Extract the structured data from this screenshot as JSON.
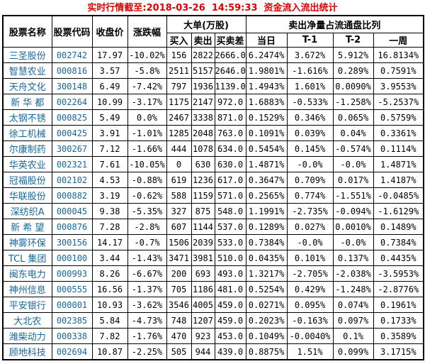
{
  "title": "实时行情截至:2018-03-26  14:59:33  资金流入流出统计",
  "colors": {
    "title_red": "#e00000",
    "stock_link_blue": "#16679c",
    "text": "#000000",
    "border": "#000000",
    "background": "#ffffff"
  },
  "table": {
    "headers": {
      "stock_name": "股票名称",
      "stock_code": "股票代码",
      "close_price": "收盘价",
      "change_pct": "涨跌幅",
      "large_orders_group": "大单(万股)",
      "buy": "买入",
      "sell": "卖出",
      "diff": "买卖差",
      "net_sell_ratio_group": "卖出净量占流通盘比列",
      "day": "当日",
      "t1": "T-1",
      "t2": "T-2",
      "week": "一周"
    },
    "rows": [
      {
        "name": "三圣股份",
        "code": "002742",
        "close": "17.97",
        "change": "-10.02%",
        "buy": "156",
        "sell": "2822",
        "diff": "2666.0",
        "day": "6.2474%",
        "t1": "3.672%",
        "t2": "5.912%",
        "week": "16.8134%"
      },
      {
        "name": "智慧农业",
        "code": "000816",
        "close": "3.57",
        "change": "-5.8%",
        "buy": "2511",
        "sell": "5157",
        "diff": "2646.0",
        "day": "1.9801%",
        "t1": "-1.616%",
        "t2": "0.289%",
        "week": "0.7591%"
      },
      {
        "name": "天舟文化",
        "code": "300148",
        "close": "6.49",
        "change": "-7.42%",
        "buy": "797",
        "sell": "1936",
        "diff": "1139.0",
        "day": "1.4943%",
        "t1": "1.601%",
        "t2": "0.0090%",
        "week": "3.9553%"
      },
      {
        "name": "新 华 都",
        "code": "002264",
        "close": "10.99",
        "change": "-3.17%",
        "buy": "1175",
        "sell": "2147",
        "diff": "972.0",
        "day": "1.6883%",
        "t1": "-0.533%",
        "t2": "-1.258%",
        "week": "-5.2537%"
      },
      {
        "name": "太钢不锈",
        "code": "000825",
        "close": "5.49",
        "change": "0.0%",
        "buy": "2467",
        "sell": "3338",
        "diff": "871.0",
        "day": "0.1529%",
        "t1": "0.346%",
        "t2": "0.065%",
        "week": "0.5759%"
      },
      {
        "name": "徐工机械",
        "code": "000425",
        "close": "3.91",
        "change": "-1.01%",
        "buy": "1285",
        "sell": "2048",
        "diff": "763.0",
        "day": "0.1091%",
        "t1": "0.039%",
        "t2": "0.04%",
        "week": "0.3361%"
      },
      {
        "name": "尔康制药",
        "code": "300267",
        "close": "7.12",
        "change": "-1.66%",
        "buy": "444",
        "sell": "1078",
        "diff": "634.0",
        "day": "0.5454%",
        "t1": "0.145%",
        "t2": "-0.574%",
        "week": "0.1114%"
      },
      {
        "name": "华英农业",
        "code": "002321",
        "close": "7.61",
        "change": "-10.05%",
        "buy": "0",
        "sell": "630",
        "diff": "630.0",
        "day": "1.4871%",
        "t1": "-0.0%",
        "t2": "-0.0%",
        "week": "1.4871%"
      },
      {
        "name": "冠福股份",
        "code": "002102",
        "close": "4.53",
        "change": "-0.88%",
        "buy": "619",
        "sell": "1236",
        "diff": "617.0",
        "day": "0.3647%",
        "t1": "0.709%",
        "t2": "0.017%",
        "week": "1.4187%"
      },
      {
        "name": "华联股份",
        "code": "000882",
        "close": "3.19",
        "change": "-0.62%",
        "buy": "588",
        "sell": "1159",
        "diff": "571.0",
        "day": "0.2565%",
        "t1": "0.774%",
        "t2": "-1.551%",
        "week": "-0.0485%"
      },
      {
        "name": "深纺织A",
        "code": "000045",
        "close": "9.38",
        "change": "-5.35%",
        "buy": "327",
        "sell": "875",
        "diff": "548.0",
        "day": "1.1991%",
        "t1": "-2.735%",
        "t2": "-0.094%",
        "week": "-1.6129%"
      },
      {
        "name": "新 希 望",
        "code": "000876",
        "close": "7.28",
        "change": "-2.8%",
        "buy": "607",
        "sell": "1144",
        "diff": "537.0",
        "day": "0.1289%",
        "t1": "0.027%",
        "t2": "0.0010%",
        "week": "0.1489%"
      },
      {
        "name": "神雾环保",
        "code": "300156",
        "close": "14.17",
        "change": "-0.7%",
        "buy": "1506",
        "sell": "2039",
        "diff": "533.0",
        "day": "0.7384%",
        "t1": "-0.0%",
        "t2": "-0.0%",
        "week": "0.7384%"
      },
      {
        "name": "TCL 集团",
        "code": "000100",
        "close": "3.44",
        "change": "-1.43%",
        "buy": "3471",
        "sell": "3981",
        "diff": "510.0",
        "day": "0.0435%",
        "t1": "0.101%",
        "t2": "0.137%",
        "week": "0.4435%"
      },
      {
        "name": "闽东电力",
        "code": "000993",
        "close": "8.26",
        "change": "-6.67%",
        "buy": "200",
        "sell": "693",
        "diff": "493.0",
        "day": "1.3217%",
        "t1": "-2.705%",
        "t2": "-2.038%",
        "week": "-3.5953%"
      },
      {
        "name": "神州信息",
        "code": "000555",
        "close": "16.56",
        "change": "-1.37%",
        "buy": "705",
        "sell": "1186",
        "diff": "481.0",
        "day": "0.5254%",
        "t1": "0.429%",
        "t2": "-1.248%",
        "week": "-2.8776%"
      },
      {
        "name": "平安银行",
        "code": "000001",
        "close": "10.93",
        "change": "-3.62%",
        "buy": "3546",
        "sell": "4005",
        "diff": "459.0",
        "day": "0.0271%",
        "t1": "0.095%",
        "t2": "0.074%",
        "week": "0.1961%"
      },
      {
        "name": "大北农",
        "code": "002385",
        "close": "5.84",
        "change": "-4.73%",
        "buy": "748",
        "sell": "1207",
        "diff": "459.0",
        "day": "0.2023%",
        "t1": "-0.163%",
        "t2": "0.097%",
        "week": "0.1733%"
      },
      {
        "name": "潍柴动力",
        "code": "000338",
        "close": "7.82",
        "change": "-1.76%",
        "buy": "470",
        "sell": "923",
        "diff": "453.0",
        "day": "0.1049%",
        "t1": "-0.0040%",
        "t2": "0.1%",
        "week": "0.3589%"
      },
      {
        "name": "顾地科技",
        "code": "002694",
        "close": "10.87",
        "change": "-2.25%",
        "buy": "505",
        "sell": "944",
        "diff": "439.0",
        "day": "0.8875%",
        "t1": "1.51%",
        "t2": "0.099%",
        "week": "3.1715%"
      }
    ]
  }
}
